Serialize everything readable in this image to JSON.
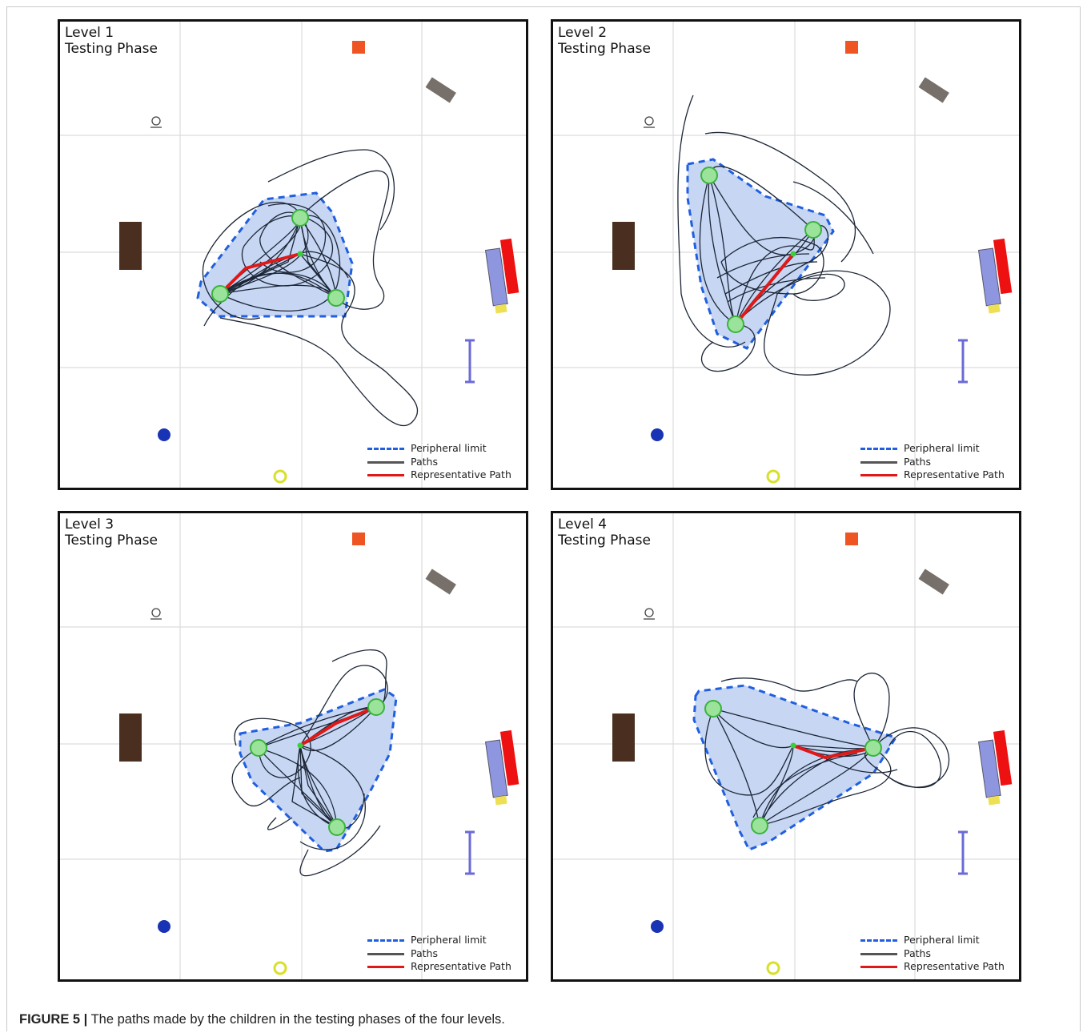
{
  "figure": {
    "caption_label": "FIGURE 5 |",
    "caption_text": " The paths made by the children in the testing phases of the four levels."
  },
  "legend": {
    "peripheral_limit": "Peripheral limit",
    "paths": "Paths",
    "representative_path": "Representative Path"
  },
  "panels": [
    {
      "level": "Level 1",
      "phase": "Testing Phase"
    },
    {
      "level": "Level 2",
      "phase": "Testing Phase"
    },
    {
      "level": "Level 3",
      "phase": "Testing Phase"
    },
    {
      "level": "Level 4",
      "phase": "Testing Phase"
    }
  ],
  "colors": {
    "peripheral": "#1f5fe0",
    "peripheral_fill": "#c6d6f3",
    "paths": "#1c2636",
    "representative": "#e01818",
    "target": "#9be39b",
    "target_stroke": "#3bb33b",
    "grid": "#dcdcdc"
  },
  "icons": [
    "lamp-icon",
    "orange-block-icon",
    "grey-bench-icon",
    "brown-table-icon",
    "blue-red-shelf-icon",
    "blue-barrier-icon",
    "blue-dot-icon",
    "yellow-ring-icon",
    "target-marker-icon"
  ]
}
